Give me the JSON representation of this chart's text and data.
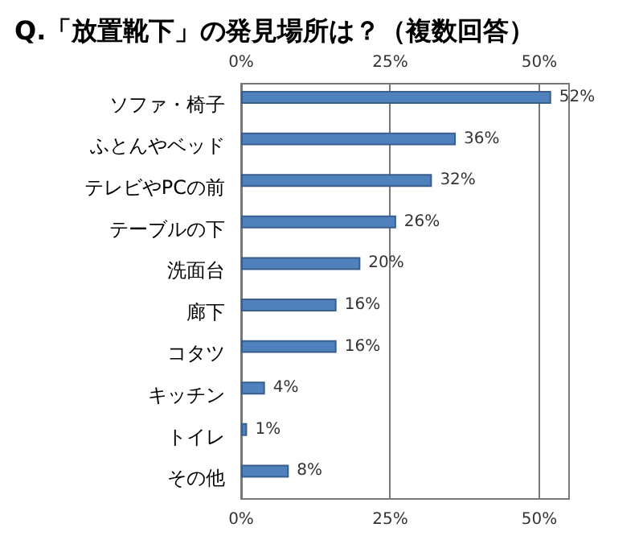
{
  "chart_data": {
    "type": "bar",
    "orientation": "horizontal",
    "title": "Q.「放置靴下」の発見場所は？（複数回答）",
    "categories": [
      "ソファ・椅子",
      "ふとんやベッド",
      "テレビやPCの前",
      "テーブルの下",
      "洗面台",
      "廊下",
      "コタツ",
      "キッチン",
      "トイレ",
      "その他"
    ],
    "values": [
      52,
      36,
      32,
      26,
      20,
      16,
      16,
      4,
      1,
      8
    ],
    "value_labels": [
      "52%",
      "36%",
      "32%",
      "26%",
      "20%",
      "16%",
      "16%",
      "4%",
      "1%",
      "8%"
    ],
    "color": "#4f81bd",
    "xlim": [
      0,
      55
    ],
    "xticks": [
      {
        "value": 0,
        "label": "0%"
      },
      {
        "value": 25,
        "label": "25%"
      },
      {
        "value": 50,
        "label": "50%"
      }
    ],
    "x2lim": [
      0,
      55
    ],
    "x2ticks": [
      {
        "value": 0,
        "label": "0%"
      },
      {
        "value": 25,
        "label": "25%"
      },
      {
        "value": 50,
        "label": "50%"
      }
    ],
    "grid": "x"
  }
}
